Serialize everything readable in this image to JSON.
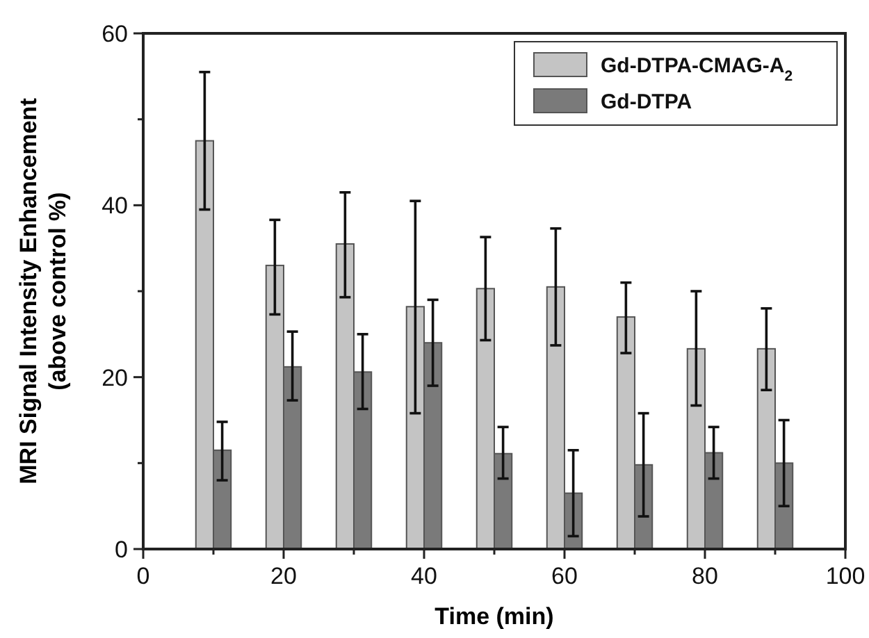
{
  "chart_data": {
    "type": "bar",
    "xlabel": "Time  (min)",
    "ylabel": "MRI Signal Intensity Enhancement\n(above control %)",
    "x": [
      10,
      20,
      30,
      40,
      50,
      60,
      70,
      80,
      90
    ],
    "series": [
      {
        "name": "Gd-DTPA-CMAG-A$_{2}$",
        "color": "#c4c4c4",
        "values": [
          47.5,
          33,
          35.5,
          28.2,
          30.3,
          30.5,
          27,
          23.3,
          23.3
        ],
        "errors": [
          [
            39.5,
            55.5
          ],
          [
            27.3,
            38.3
          ],
          [
            29.3,
            41.5
          ],
          [
            15.8,
            40.5
          ],
          [
            24.3,
            36.3
          ],
          [
            23.7,
            37.3
          ],
          [
            22.8,
            31
          ],
          [
            16.7,
            30
          ],
          [
            18.5,
            28
          ]
        ]
      },
      {
        "name": "Gd-DTPA",
        "color": "#7a7a7a",
        "values": [
          11.5,
          21.2,
          20.6,
          24,
          11.1,
          6.5,
          9.8,
          11.2,
          10
        ],
        "errors": [
          [
            8,
            14.8
          ],
          [
            17.3,
            25.3
          ],
          [
            16.3,
            25
          ],
          [
            19,
            29
          ],
          [
            8.2,
            14.2
          ],
          [
            1.5,
            11.5
          ],
          [
            3.8,
            15.8
          ],
          [
            8.2,
            14.2
          ],
          [
            5,
            15
          ]
        ]
      }
    ],
    "xlim": [
      0,
      100
    ],
    "xticks": [
      0,
      {
        "value": 10,
        "label": null
      },
      20,
      {
        "value": 30,
        "label": null
      },
      40,
      {
        "value": 50,
        "label": null
      },
      60,
      {
        "value": 70,
        "label": null
      },
      80,
      {
        "value": 90,
        "label": null
      },
      100
    ],
    "ylim": [
      0,
      60
    ],
    "yticks": [
      0,
      {
        "value": 10,
        "label": null
      },
      20,
      {
        "value": 30,
        "label": null
      },
      40,
      {
        "value": 50,
        "label": null
      },
      60
    ],
    "grid": false,
    "legend": "top right"
  }
}
